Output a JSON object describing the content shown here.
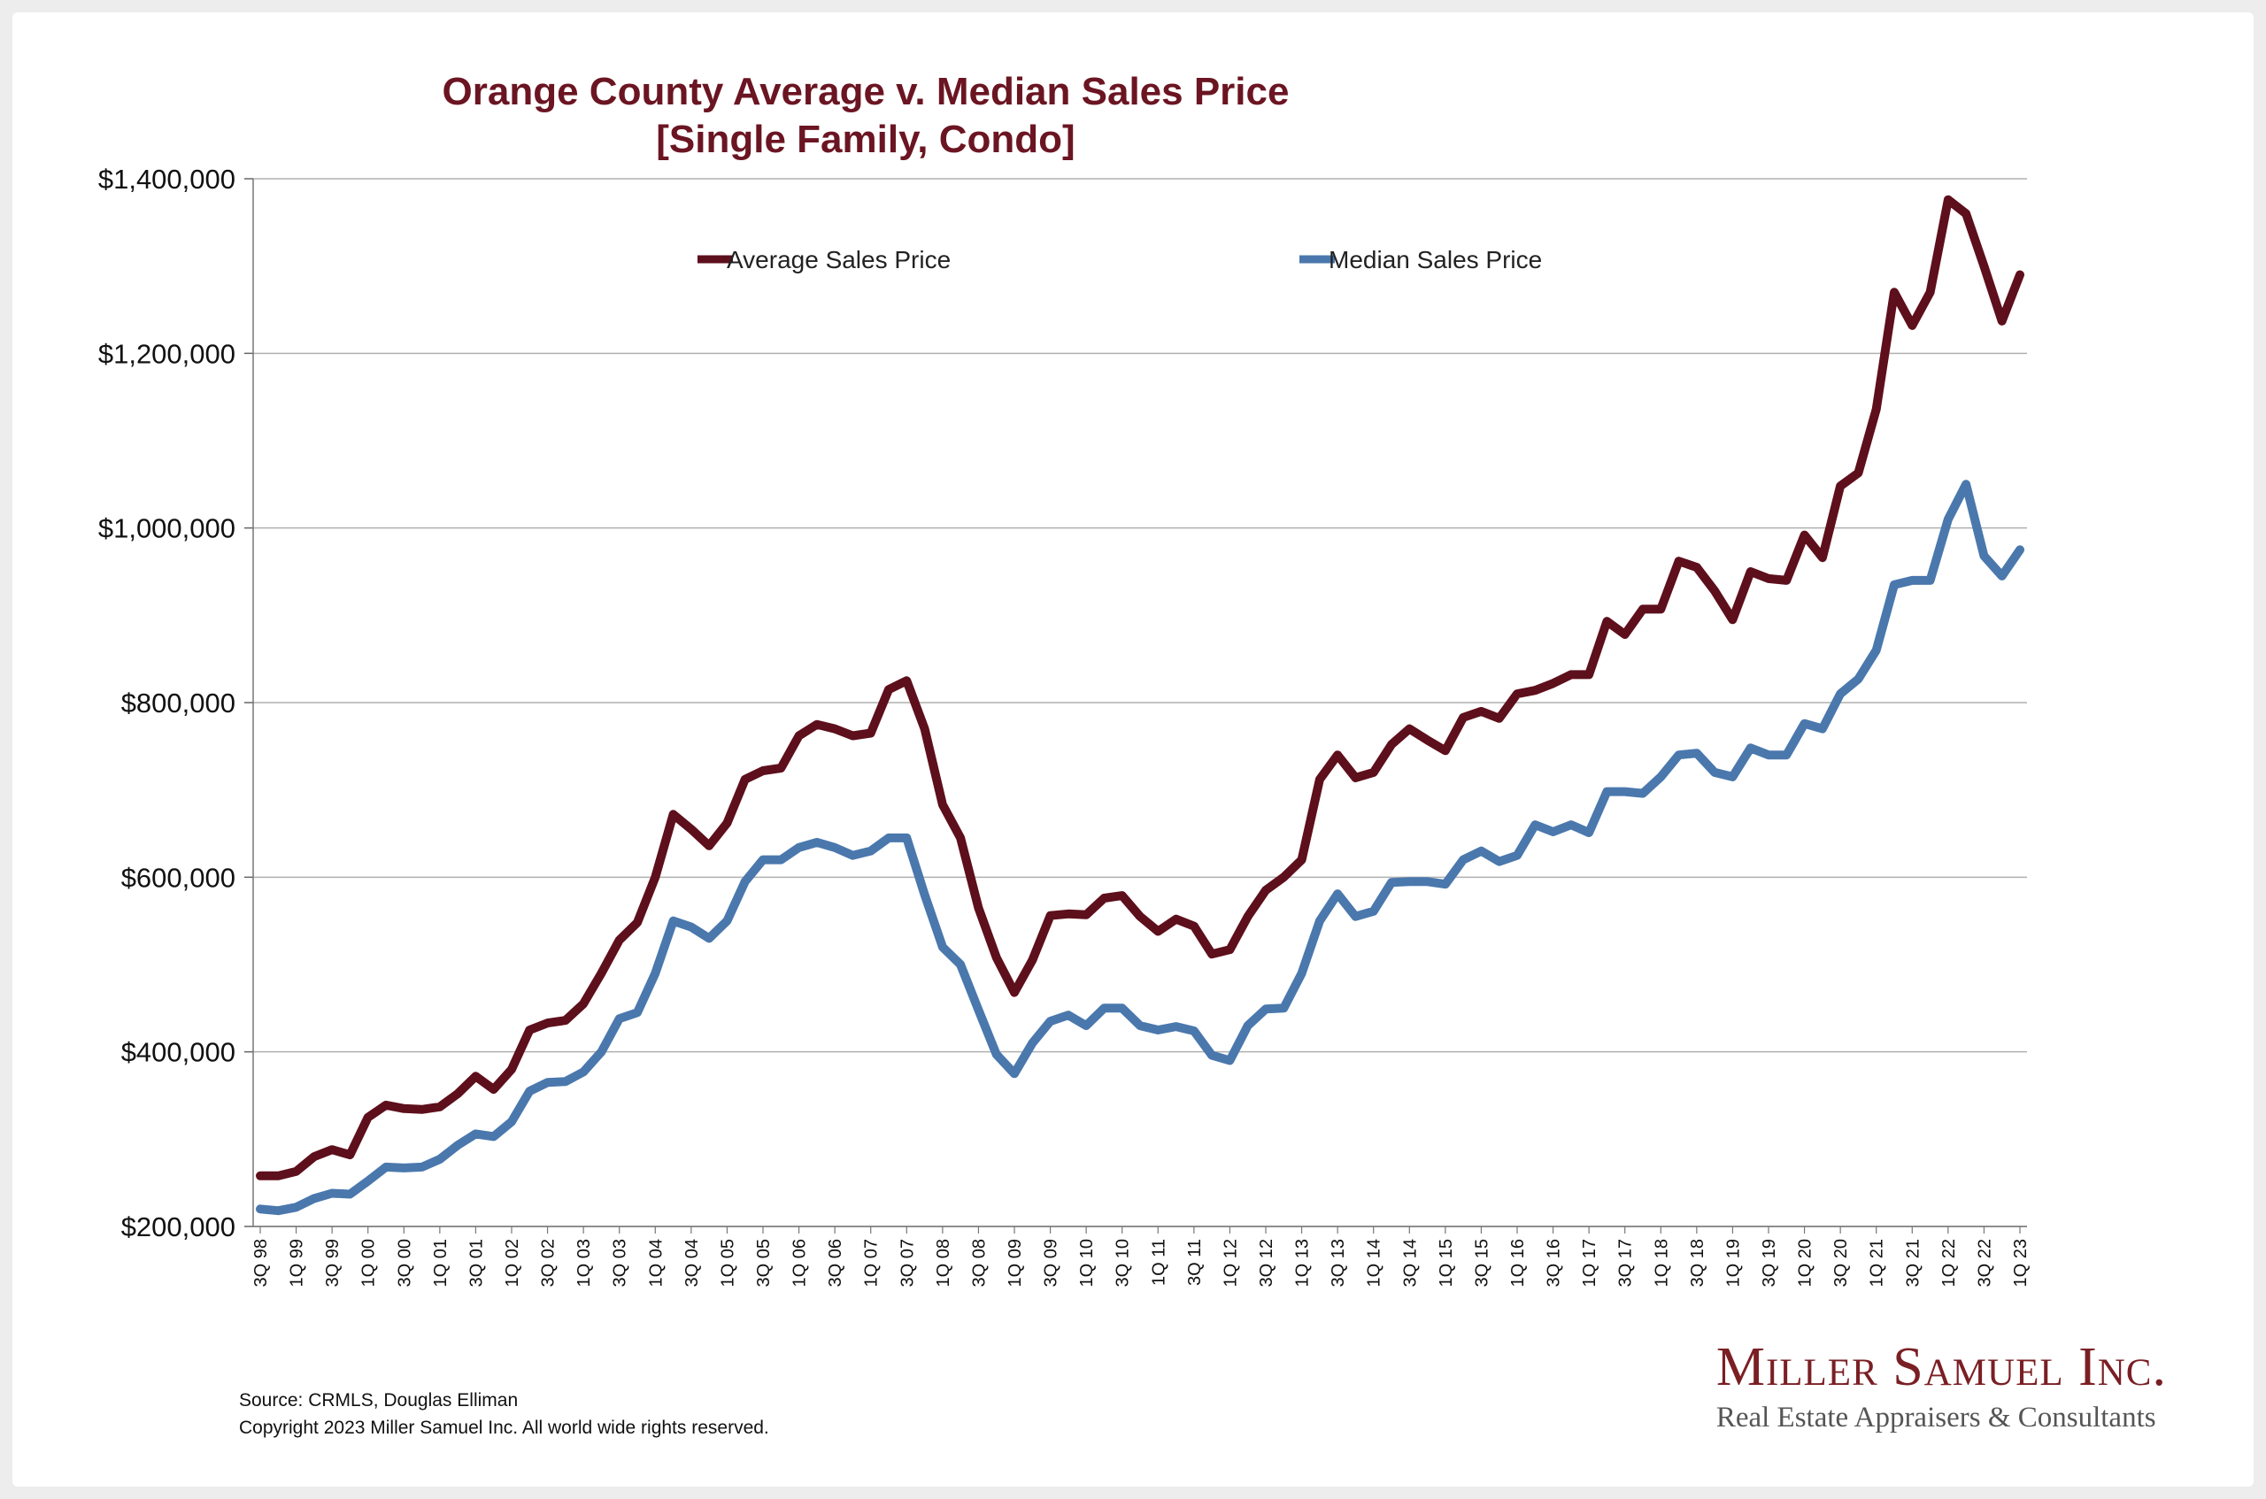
{
  "colors": {
    "average": "#5e0f1c",
    "median": "#4a78ad",
    "title": "#6b1522",
    "grid": "#b0b0b0"
  },
  "chart_data": {
    "type": "line",
    "title": "Orange County Average v. Median Sales Price",
    "subtitle": "[Single Family, Condo]",
    "xlabel": "",
    "ylabel": "",
    "ylim": [
      200000,
      1400000
    ],
    "yticks": [
      200000,
      400000,
      600000,
      800000,
      1000000,
      1200000,
      1400000
    ],
    "ytick_labels": [
      "$200,000",
      "$400,000",
      "$600,000",
      "$800,000",
      "$1,000,000",
      "$1,200,000",
      "$1,400,000"
    ],
    "grid": true,
    "legend_position": "top",
    "x": [
      "3Q 98",
      "4Q 98",
      "1Q 99",
      "2Q 99",
      "3Q 99",
      "4Q 99",
      "1Q 00",
      "2Q 00",
      "3Q 00",
      "4Q 00",
      "1Q 01",
      "2Q 01",
      "3Q 01",
      "4Q 01",
      "1Q 02",
      "2Q 02",
      "3Q 02",
      "4Q 02",
      "1Q 03",
      "2Q 03",
      "3Q 03",
      "4Q 03",
      "1Q 04",
      "2Q 04",
      "3Q 04",
      "4Q 04",
      "1Q 05",
      "2Q 05",
      "3Q 05",
      "4Q 05",
      "1Q 06",
      "2Q 06",
      "3Q 06",
      "4Q 06",
      "1Q 07",
      "2Q 07",
      "3Q 07",
      "4Q 07",
      "1Q 08",
      "2Q 08",
      "3Q 08",
      "4Q 08",
      "1Q 09",
      "2Q 09",
      "3Q 09",
      "4Q 09",
      "1Q 10",
      "2Q 10",
      "3Q 10",
      "4Q 10",
      "1Q 11",
      "2Q 11",
      "3Q 11",
      "4Q 11",
      "1Q 12",
      "2Q 12",
      "3Q 12",
      "4Q 12",
      "1Q 13",
      "2Q 13",
      "3Q 13",
      "4Q 13",
      "1Q 14",
      "2Q 14",
      "3Q 14",
      "4Q 14",
      "1Q 15",
      "2Q 15",
      "3Q 15",
      "4Q 15",
      "1Q 16",
      "2Q 16",
      "3Q 16",
      "4Q 16",
      "1Q 17",
      "2Q 17",
      "3Q 17",
      "4Q 17",
      "1Q 18",
      "2Q 18",
      "3Q 18",
      "4Q 18",
      "1Q 19",
      "2Q 19",
      "3Q 19",
      "4Q 19",
      "1Q 20",
      "2Q 20",
      "3Q 20",
      "4Q 20",
      "1Q 21",
      "2Q 21",
      "3Q 21",
      "4Q 21",
      "1Q 22",
      "2Q 22",
      "3Q 22",
      "4Q 22",
      "1Q 23"
    ],
    "x_labeled": [
      "3Q 98",
      "1Q 99",
      "3Q 99",
      "1Q 00",
      "3Q 00",
      "1Q 01",
      "3Q 01",
      "1Q 02",
      "3Q 02",
      "1Q 03",
      "3Q 03",
      "1Q 04",
      "3Q 04",
      "1Q 05",
      "3Q 05",
      "1Q 06",
      "3Q 06",
      "1Q 07",
      "3Q 07",
      "1Q 08",
      "3Q 08",
      "1Q 09",
      "3Q 09",
      "1Q 10",
      "3Q 10",
      "1Q 11",
      "3Q 11",
      "1Q 12",
      "3Q 12",
      "1Q 13",
      "3Q 13",
      "1Q 14",
      "3Q 14",
      "1Q 15",
      "3Q 15",
      "1Q 16",
      "3Q 16",
      "1Q 17",
      "3Q 17",
      "1Q 18",
      "3Q 18",
      "1Q 19",
      "3Q 19",
      "1Q 20",
      "3Q 20",
      "1Q 21",
      "3Q 21",
      "1Q 22",
      "3Q 22",
      "1Q 23"
    ],
    "series": [
      {
        "name": "Average Sales Price",
        "values": [
          258000,
          258000,
          263000,
          280000,
          288000,
          282000,
          325000,
          339000,
          335000,
          334000,
          337000,
          352000,
          372000,
          357000,
          380000,
          425000,
          433000,
          436000,
          455000,
          490000,
          528000,
          548000,
          600000,
          672000,
          655000,
          636000,
          662000,
          712000,
          722000,
          725000,
          762000,
          775000,
          770000,
          762000,
          765000,
          815000,
          825000,
          770000,
          683000,
          645000,
          565000,
          508000,
          468000,
          505000,
          556000,
          558000,
          557000,
          576000,
          579000,
          555000,
          538000,
          552000,
          544000,
          512000,
          517000,
          555000,
          585000,
          600000,
          620000,
          712000,
          740000,
          714000,
          720000,
          752000,
          770000,
          757000,
          745000,
          783000,
          790000,
          782000,
          810000,
          814000,
          822000,
          832000,
          832000,
          893000,
          878000,
          907000,
          907000,
          962000,
          955000,
          928000,
          895000,
          950000,
          942000,
          940000,
          992000,
          966000,
          1048000,
          1063000,
          1136000,
          1270000,
          1232000,
          1270000,
          1376000,
          1360000,
          1300000,
          1237000,
          1290000
        ]
      },
      {
        "name": "Median Sales Price",
        "values": [
          220000,
          218000,
          222000,
          232000,
          238000,
          237000,
          252000,
          268000,
          267000,
          268000,
          277000,
          293000,
          306000,
          303000,
          320000,
          355000,
          365000,
          366000,
          377000,
          400000,
          438000,
          445000,
          490000,
          550000,
          543000,
          530000,
          550000,
          595000,
          620000,
          620000,
          634000,
          640000,
          634000,
          625000,
          630000,
          645000,
          645000,
          580000,
          520000,
          500000,
          448000,
          397000,
          375000,
          410000,
          435000,
          442000,
          430000,
          450000,
          450000,
          430000,
          425000,
          429000,
          424000,
          396000,
          390000,
          430000,
          449000,
          450000,
          490000,
          550000,
          581000,
          555000,
          561000,
          594000,
          595000,
          595000,
          592000,
          620000,
          630000,
          618000,
          625000,
          660000,
          652000,
          660000,
          651000,
          698000,
          698000,
          696000,
          715000,
          740000,
          742000,
          720000,
          715000,
          748000,
          740000,
          740000,
          776000,
          770000,
          810000,
          827000,
          860000,
          935000,
          940000,
          940000,
          1010000,
          1050000,
          968000,
          945000,
          975000
        ]
      }
    ]
  },
  "footer": {
    "source": "Source: CRMLS, Douglas Elliman",
    "copyright": "Copyright 2023 Miller Samuel Inc.  All world wide rights reserved."
  },
  "logo": {
    "name": "Miller Samuel Inc.",
    "tagline": "Real Estate Appraisers & Consultants"
  }
}
